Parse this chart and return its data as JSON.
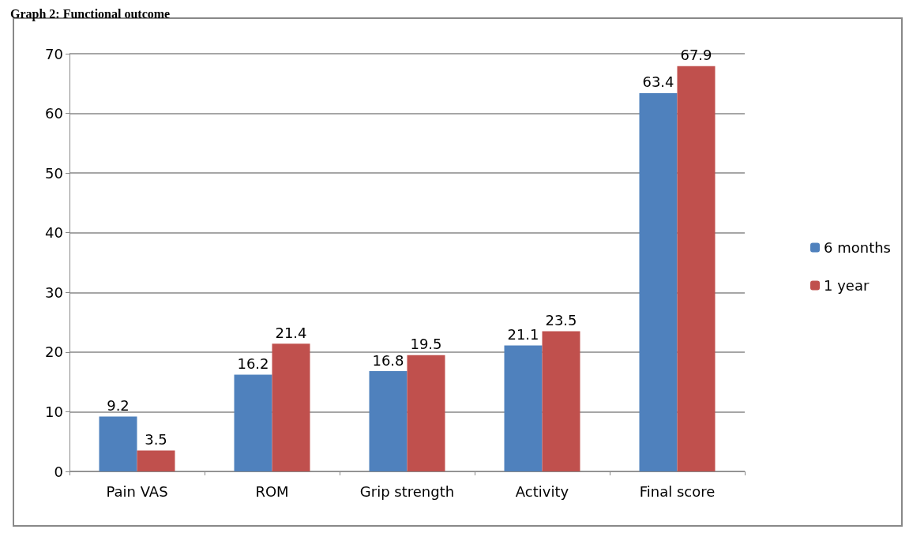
{
  "chart_data": {
    "type": "bar",
    "title": "Graph 2: Functional outcome",
    "categories": [
      "Pain VAS",
      "ROM",
      "Grip strength",
      "Activity",
      "Final score"
    ],
    "series": [
      {
        "name": "6 months",
        "color": "#4f81bd",
        "values": [
          9.2,
          16.2,
          16.8,
          21.1,
          63.4
        ]
      },
      {
        "name": "1 year",
        "color": "#c0504d",
        "values": [
          3.5,
          21.4,
          19.5,
          23.5,
          67.9
        ]
      }
    ],
    "ylim": [
      0,
      70
    ],
    "yticks": [
      0,
      10,
      20,
      30,
      40,
      50,
      60,
      70
    ],
    "grid": "y",
    "legend": "right",
    "data_labels": true
  }
}
